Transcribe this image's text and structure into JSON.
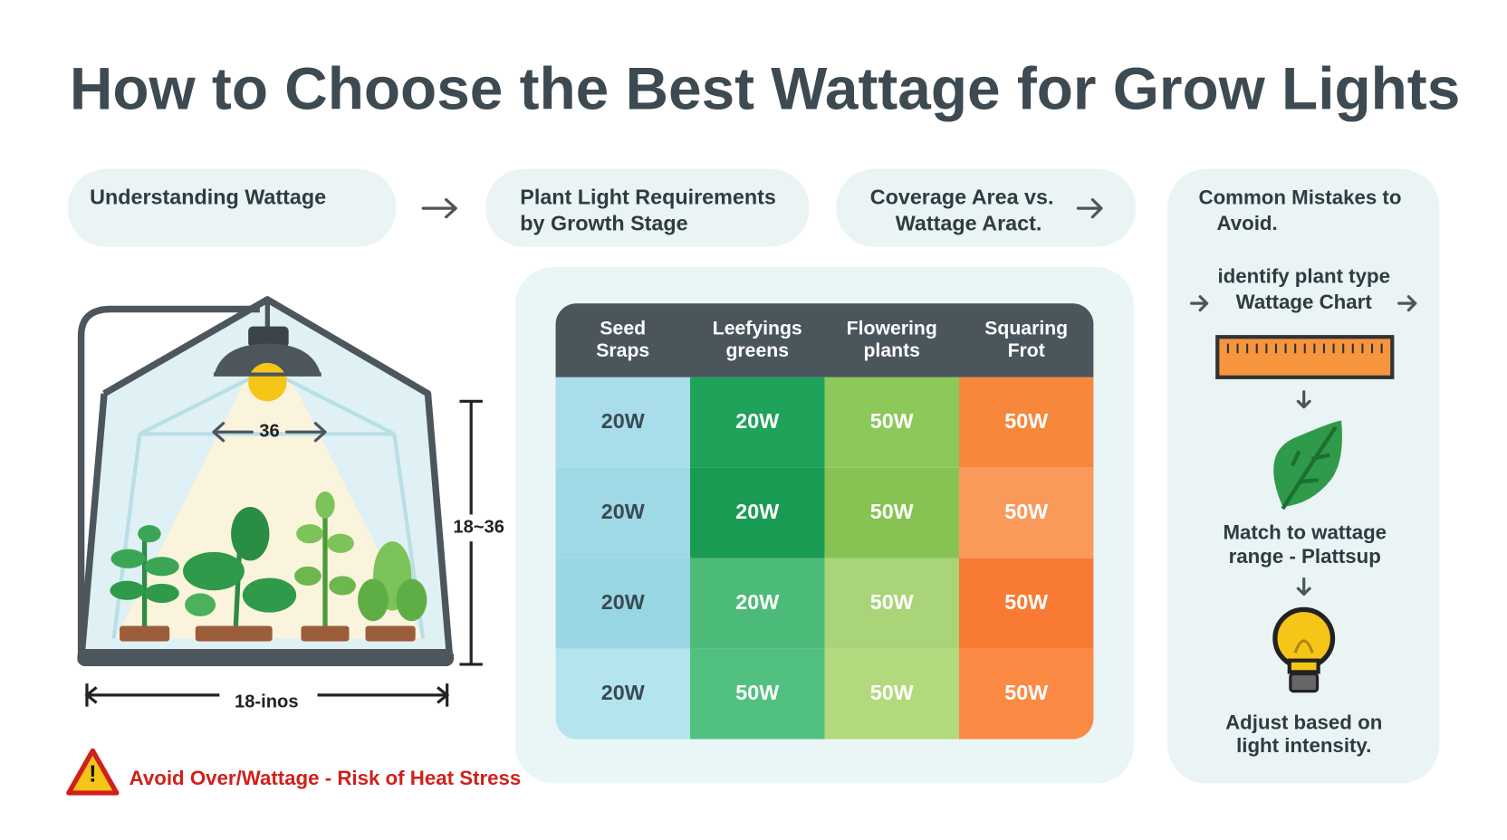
{
  "title": "How to Choose the Best Wattage for Grow Lights",
  "steps": [
    {
      "lines": [
        "Understanding Wattage"
      ]
    },
    {
      "lines": [
        "Plant Light Requirements",
        "by Growth Stage"
      ]
    },
    {
      "lines": [
        "Coverage Area vs.",
        "Wattage Aract."
      ]
    }
  ],
  "diagram": {
    "lamp_width": "36",
    "height": "18~36",
    "width": "18-inos",
    "warning": "Avoid Over/Wattage - Risk of Heat Stress"
  },
  "table": {
    "header": [
      [
        "Seed",
        "Sraps"
      ],
      [
        "Leefyings",
        "greens"
      ],
      [
        "Flowering",
        "plants"
      ],
      [
        "Squaring",
        "Frot"
      ]
    ],
    "rows": [
      [
        "20W",
        "20W",
        "50W",
        "50W"
      ],
      [
        "20W",
        "20W",
        "50W",
        "50W"
      ],
      [
        "20W",
        "20W",
        "50W",
        "50W"
      ],
      [
        "20W",
        "50W",
        "50W",
        "50W"
      ]
    ]
  },
  "sidebar": {
    "title": [
      "Common Mistakes to",
      "Avoid."
    ],
    "step1": [
      "identify plant type",
      "Wattage Chart"
    ],
    "step2": [
      "Match to wattage",
      "range - Plattsup"
    ],
    "step3": [
      "Adjust based on",
      "light intensity."
    ]
  }
}
